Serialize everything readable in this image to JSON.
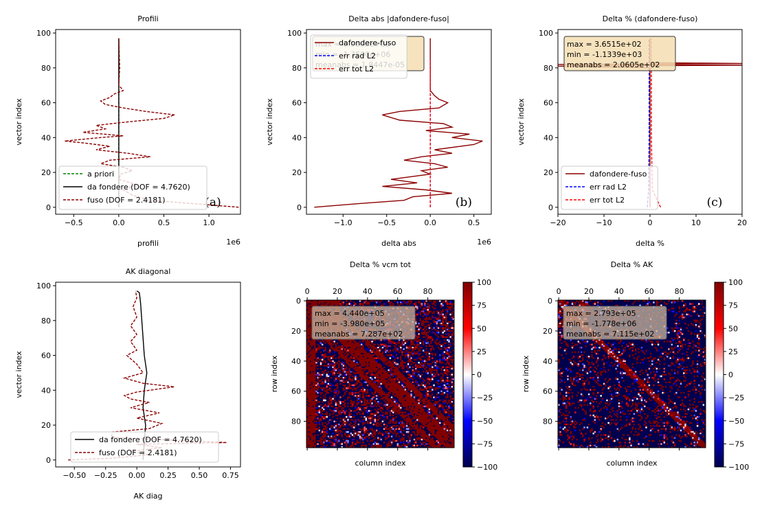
{
  "colors": {
    "green": "#008000",
    "black": "#000000",
    "darkred": "#8b0000",
    "blue": "#0000ff",
    "red": "#ff0000",
    "box": "#f5deb3",
    "boxEdge": "#333333"
  },
  "chart_data": [
    {
      "type": "line",
      "title": "Profili",
      "xlabel": "profili",
      "ylabel": "vector index",
      "xlim": [
        -0.7,
        1.35
      ],
      "ylim": [
        -4,
        102
      ],
      "x_exponent": "1e6",
      "xticks": [
        {
          "v": -0.5,
          "t": "−0.5"
        },
        {
          "v": 0,
          "t": "0.0"
        },
        {
          "v": 0.5,
          "t": "0.5"
        },
        {
          "v": 1.0,
          "t": "1.0"
        }
      ],
      "yticks": [
        0,
        20,
        40,
        60,
        80,
        100
      ],
      "panel_label": "(a)",
      "legend_position": "lower left",
      "series": [
        {
          "name": "a priori",
          "color": "green",
          "dash": true,
          "points": [
            [
              0,
              0
            ],
            [
              0,
              97
            ]
          ]
        },
        {
          "name": "da fondere (DOF = 4.7620)",
          "color": "black",
          "dash": false,
          "points": [
            [
              0,
              0
            ],
            [
              0,
              97
            ]
          ]
        },
        {
          "name": "fuso       (DOF = 2.4181)",
          "color": "darkred",
          "dash": true,
          "points": [
            [
              1.33,
              0
            ],
            [
              0.85,
              2
            ],
            [
              0.35,
              4
            ],
            [
              0.15,
              7
            ],
            [
              0.05,
              10
            ],
            [
              0.2,
              13
            ],
            [
              0,
              16
            ],
            [
              0.02,
              19
            ],
            [
              0.15,
              21
            ],
            [
              0.05,
              23
            ],
            [
              -0.2,
              25
            ],
            [
              -0.1,
              27
            ],
            [
              0.35,
              29
            ],
            [
              0.1,
              31
            ],
            [
              -0.25,
              33
            ],
            [
              -0.1,
              35
            ],
            [
              -0.4,
              37
            ],
            [
              -0.6,
              38
            ],
            [
              -0.2,
              40
            ],
            [
              0.05,
              41
            ],
            [
              -0.4,
              43
            ],
            [
              -0.15,
              45
            ],
            [
              -0.25,
              47
            ],
            [
              0.1,
              49
            ],
            [
              0.5,
              51
            ],
            [
              0.62,
              53
            ],
            [
              0.3,
              55
            ],
            [
              0.05,
              57
            ],
            [
              -0.15,
              59
            ],
            [
              -0.2,
              61
            ],
            [
              -0.1,
              63
            ],
            [
              -0.05,
              65
            ],
            [
              0.05,
              67
            ],
            [
              0,
              70
            ],
            [
              0.01,
              80
            ],
            [
              0,
              97
            ]
          ]
        }
      ]
    },
    {
      "type": "line",
      "title": "Delta abs |dafondere-fuso|",
      "xlabel": "delta abs",
      "ylabel": "vector index",
      "xlim": [
        -1.42,
        0.7
      ],
      "ylim": [
        -4,
        102
      ],
      "x_exponent": "1e6",
      "xticks": [
        {
          "v": -1.0,
          "t": "−1.0"
        },
        {
          "v": -0.5,
          "t": "−0.5"
        },
        {
          "v": 0,
          "t": "0.0"
        },
        {
          "v": 0.5,
          "t": "0.5"
        }
      ],
      "yticks": [
        0,
        20,
        40,
        60,
        80,
        100
      ],
      "panel_label": "(b)",
      "legend_position": "upper left",
      "stats": [
        "max  = 6.0000e+05",
        "min  = -1.3500e+06",
        "meanabs = 1.8447e-05"
      ],
      "series": [
        {
          "name": "dafondere-fuso",
          "color": "darkred",
          "dash": false,
          "points": [
            [
              -1.33,
              0
            ],
            [
              -0.85,
              2
            ],
            [
              -0.3,
              4
            ],
            [
              -0.2,
              6
            ],
            [
              0.25,
              8
            ],
            [
              -0.05,
              10
            ],
            [
              -0.55,
              12
            ],
            [
              -0.15,
              14
            ],
            [
              -0.45,
              16
            ],
            [
              0,
              19
            ],
            [
              -0.1,
              21
            ],
            [
              0.2,
              23
            ],
            [
              0.05,
              25
            ],
            [
              -0.3,
              27
            ],
            [
              -0.1,
              29
            ],
            [
              0.25,
              31
            ],
            [
              0.05,
              33
            ],
            [
              0.5,
              36
            ],
            [
              0.6,
              38
            ],
            [
              0.25,
              40
            ],
            [
              0.45,
              42
            ],
            [
              -0.05,
              44
            ],
            [
              0.25,
              46
            ],
            [
              0.15,
              48
            ],
            [
              -0.35,
              50
            ],
            [
              -0.55,
              53
            ],
            [
              -0.35,
              55
            ],
            [
              0.1,
              57
            ],
            [
              0.2,
              60
            ],
            [
              0.1,
              62
            ],
            [
              0.05,
              64
            ],
            [
              0,
              67
            ],
            [
              0,
              97
            ]
          ]
        },
        {
          "name": "err rad L2",
          "color": "blue",
          "dash": true,
          "points": [
            [
              0,
              0
            ],
            [
              0,
              85
            ]
          ]
        },
        {
          "name": "err tot L2",
          "color": "red",
          "dash": true,
          "points": [
            [
              0,
              0
            ],
            [
              0,
              85
            ]
          ]
        }
      ]
    },
    {
      "type": "line",
      "title": "Delta % (dafondere-fuso)",
      "xlabel": "delta %",
      "ylabel": "vector index",
      "xlim": [
        -20,
        20
      ],
      "ylim": [
        -4,
        102
      ],
      "xticks": [
        {
          "v": -20,
          "t": "−20"
        },
        {
          "v": -10,
          "t": "−10"
        },
        {
          "v": 0,
          "t": "0"
        },
        {
          "v": 10,
          "t": "10"
        },
        {
          "v": 20,
          "t": "20"
        }
      ],
      "yticks": [
        0,
        20,
        40,
        60,
        80,
        100
      ],
      "panel_label": "(c)",
      "legend_position": "lower left",
      "stats": [
        "max  = 3.6515e+02",
        "min  = -1.1339e+03",
        "meanabs = 2.0605e+02"
      ],
      "series": [
        {
          "name": "dafondere-fuso",
          "color": "darkred",
          "dash": false,
          "points": [
            [
              0,
              0
            ],
            [
              0,
              80
            ],
            [
              -20,
              81
            ],
            [
              20,
              81.5
            ],
            [
              -20,
              82
            ],
            [
              20,
              82.5
            ],
            [
              0,
              83
            ],
            [
              0,
              97
            ]
          ]
        },
        {
          "name": "err rad L2",
          "color": "blue",
          "dash": true,
          "points": [
            [
              -0.6,
              0
            ],
            [
              -0.3,
              10
            ],
            [
              -0.2,
              40
            ],
            [
              -0.2,
              97
            ]
          ]
        },
        {
          "name": "err tot L2",
          "color": "red",
          "dash": true,
          "points": [
            [
              2.3,
              0
            ],
            [
              0.5,
              10
            ],
            [
              0.3,
              40
            ],
            [
              0.3,
              97
            ]
          ]
        }
      ]
    },
    {
      "type": "line",
      "title": "AK diagonal",
      "xlabel": "AK diag",
      "ylabel": "vector index",
      "xlim": [
        -0.65,
        0.83
      ],
      "ylim": [
        -4,
        102
      ],
      "xticks": [
        {
          "v": -0.5,
          "t": "−0.50"
        },
        {
          "v": -0.25,
          "t": "−0.25"
        },
        {
          "v": 0,
          "t": "0.00"
        },
        {
          "v": 0.25,
          "t": "0.25"
        },
        {
          "v": 0.5,
          "t": "0.50"
        },
        {
          "v": 0.75,
          "t": "0.75"
        }
      ],
      "yticks": [
        0,
        20,
        40,
        60,
        80,
        100
      ],
      "legend_position": "lower right",
      "series": [
        {
          "name": "da fondere (DOF = 4.7620)",
          "color": "black",
          "dash": false,
          "points": [
            [
              0.05,
              0
            ],
            [
              0.06,
              10
            ],
            [
              0.07,
              20
            ],
            [
              0.05,
              30
            ],
            [
              0.06,
              40
            ],
            [
              0.08,
              50
            ],
            [
              0.06,
              60
            ],
            [
              0.05,
              70
            ],
            [
              0.04,
              80
            ],
            [
              0.03,
              90
            ],
            [
              0.02,
              96
            ],
            [
              0.0,
              97
            ]
          ]
        },
        {
          "name": "fuso       (DOF = 2.4181)",
          "color": "darkred",
          "dash": true,
          "points": [
            [
              -0.55,
              0
            ],
            [
              -0.2,
              1
            ],
            [
              0.1,
              3
            ],
            [
              -0.05,
              5
            ],
            [
              0.2,
              7
            ],
            [
              0,
              9
            ],
            [
              0.72,
              10
            ],
            [
              -0.2,
              13
            ],
            [
              -0.2,
              16
            ],
            [
              0.1,
              18
            ],
            [
              0.2,
              21
            ],
            [
              0,
              24
            ],
            [
              0.18,
              27
            ],
            [
              -0.05,
              30
            ],
            [
              0.1,
              33
            ],
            [
              -0.05,
              35
            ],
            [
              -0.1,
              37
            ],
            [
              0,
              39
            ],
            [
              0.3,
              42
            ],
            [
              0.05,
              44
            ],
            [
              -0.1,
              47
            ],
            [
              0.05,
              50
            ],
            [
              0,
              55
            ],
            [
              -0.08,
              60
            ],
            [
              0,
              63
            ],
            [
              -0.05,
              68
            ],
            [
              0,
              72
            ],
            [
              -0.05,
              77
            ],
            [
              0,
              82
            ],
            [
              -0.03,
              88
            ],
            [
              0,
              93
            ],
            [
              -0.01,
              97
            ]
          ]
        }
      ]
    },
    {
      "type": "heatmap",
      "title": "Delta % vcm tot",
      "xlabel": "column index",
      "ylabel": "row index",
      "size": 98,
      "vmin": -100,
      "vmax": 100,
      "colormap": "seismic",
      "xticks": [
        0,
        20,
        40,
        60,
        80
      ],
      "yticks": [
        0,
        20,
        40,
        60,
        80
      ],
      "colorbar_ticks": [
        100,
        75,
        50,
        25,
        0,
        -25,
        -50,
        -75,
        -100
      ],
      "stats": [
        "max  = 4.440e+05",
        "min  = -3.980e+05",
        "meanabs = 7.287e+02"
      ]
    },
    {
      "type": "heatmap",
      "title": "Delta % AK",
      "xlabel": "column index",
      "ylabel": "row index",
      "size": 98,
      "vmin": -100,
      "vmax": 100,
      "colormap": "seismic",
      "xticks": [
        0,
        20,
        40,
        60,
        80
      ],
      "yticks": [
        0,
        20,
        40,
        60,
        80
      ],
      "colorbar_ticks": [
        100,
        75,
        50,
        25,
        0,
        -25,
        -50,
        -75,
        -100
      ],
      "stats": [
        "max  = 2.793e+05",
        "min  = -1.778e+06",
        "meanabs = 7.115e+02"
      ]
    }
  ]
}
